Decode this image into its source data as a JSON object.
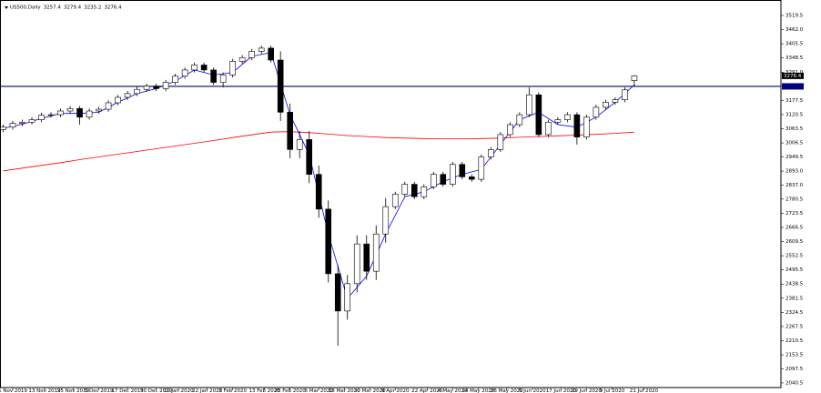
{
  "chart_data": {
    "type": "candlestick",
    "symbol": "US500,Daily",
    "x": [
      0,
      3,
      6,
      9,
      12,
      15,
      18,
      21,
      24,
      27,
      30,
      33,
      36,
      39,
      42,
      45,
      48,
      51,
      54,
      57,
      60,
      63,
      66,
      69,
      72,
      75,
      78,
      81,
      84,
      87,
      90,
      93,
      96,
      99,
      102,
      105,
      108,
      111,
      114,
      117,
      120,
      123,
      126,
      129,
      132,
      135,
      138,
      141,
      144,
      147,
      150,
      153,
      156,
      159,
      162,
      165,
      168,
      171,
      174,
      177,
      180,
      183,
      186,
      189,
      192,
      195,
      198
    ],
    "open": [
      3060,
      3070,
      3085,
      3090,
      3100,
      3118,
      3120,
      3135,
      3145,
      3110,
      3135,
      3142,
      3168,
      3190,
      3205,
      3222,
      3235,
      3225,
      3250,
      3275,
      3300,
      3320,
      3300,
      3250,
      3280,
      3335,
      3350,
      3375,
      3388,
      3340,
      3130,
      2980,
      3020,
      2880,
      2740,
      2480,
      2330,
      2440,
      2600,
      2490,
      2640,
      2750,
      2800,
      2840,
      2790,
      2830,
      2880,
      2840,
      2920,
      2870,
      2860,
      2950,
      2980,
      3040,
      3080,
      3120,
      3200,
      3040,
      3090,
      3100,
      3120,
      3030,
      3110,
      3150,
      3170,
      3180,
      3257.4
    ],
    "high": [
      3080,
      3095,
      3100,
      3110,
      3128,
      3130,
      3145,
      3155,
      3155,
      3145,
      3152,
      3178,
      3200,
      3215,
      3232,
      3245,
      3245,
      3260,
      3285,
      3310,
      3330,
      3330,
      3310,
      3290,
      3345,
      3360,
      3385,
      3398,
      3398,
      3375,
      3165,
      3055,
      3055,
      2915,
      2775,
      2515,
      2475,
      2635,
      2635,
      2675,
      2785,
      2810,
      2850,
      2850,
      2840,
      2890,
      2890,
      2930,
      2930,
      2880,
      2960,
      2990,
      3050,
      3090,
      3130,
      3230,
      3210,
      3100,
      3110,
      3130,
      3130,
      3120,
      3160,
      3180,
      3190,
      3230,
      3279.4
    ],
    "low": [
      3050,
      3060,
      3075,
      3080,
      3090,
      3108,
      3110,
      3125,
      3080,
      3100,
      3125,
      3132,
      3158,
      3180,
      3195,
      3212,
      3215,
      3215,
      3240,
      3265,
      3290,
      3290,
      3240,
      3230,
      3270,
      3325,
      3340,
      3365,
      3330,
      3095,
      2945,
      2945,
      2845,
      2705,
      2445,
      2190,
      2295,
      2405,
      2455,
      2455,
      2605,
      2740,
      2790,
      2780,
      2780,
      2820,
      2830,
      2830,
      2860,
      2850,
      2850,
      2940,
      2970,
      3030,
      3070,
      3110,
      3030,
      3030,
      3080,
      3090,
      3000,
      3020,
      3100,
      3140,
      3160,
      3170,
      3235.2
    ],
    "close": [
      3070,
      3085,
      3090,
      3100,
      3118,
      3120,
      3135,
      3145,
      3110,
      3135,
      3142,
      3168,
      3190,
      3205,
      3222,
      3235,
      3225,
      3250,
      3275,
      3300,
      3320,
      3300,
      3250,
      3280,
      3335,
      3350,
      3375,
      3388,
      3340,
      3130,
      2980,
      3020,
      2880,
      2740,
      2480,
      2330,
      2440,
      2600,
      2490,
      2640,
      2750,
      2800,
      2840,
      2790,
      2830,
      2880,
      2840,
      2920,
      2870,
      2860,
      2950,
      2980,
      3040,
      3080,
      3120,
      3200,
      3040,
      3090,
      3100,
      3120,
      3030,
      3110,
      3150,
      3170,
      3180,
      3220,
      3276.4
    ],
    "color_up": "#ffffff",
    "color_down": "#000000",
    "moving_averages": [
      {
        "color": "#ff0000",
        "x": [
          0,
          6,
          12,
          18,
          24,
          30,
          36,
          42,
          48,
          54,
          60,
          66,
          72,
          78,
          84,
          90,
          96,
          102,
          108,
          114,
          120,
          126,
          132,
          138,
          144,
          150,
          156,
          162,
          168,
          174,
          180,
          186,
          192,
          198
        ],
        "values": [
          2894,
          2905,
          2916,
          2927,
          2939,
          2950,
          2961,
          2972,
          2983,
          2994,
          3005,
          3016,
          3028,
          3039,
          3050,
          3052,
          3048,
          3042,
          3036,
          3032,
          3028,
          3026,
          3024,
          3023,
          3023,
          3024,
          3026,
          3029,
          3032,
          3035,
          3038,
          3041,
          3045,
          3050
        ]
      },
      {
        "color": "#0000ff",
        "x": [
          0,
          6,
          12,
          18,
          24,
          30,
          36,
          42,
          48,
          54,
          60,
          66,
          72,
          78,
          84,
          90,
          96,
          102,
          108,
          114,
          120,
          126,
          132,
          138,
          144,
          150,
          156,
          162,
          168,
          174,
          180,
          186,
          192,
          198
        ],
        "values": [
          3065,
          3082,
          3105,
          3125,
          3125,
          3130,
          3170,
          3205,
          3225,
          3255,
          3300,
          3280,
          3290,
          3355,
          3370,
          3120,
          2960,
          2640,
          2380,
          2470,
          2640,
          2790,
          2810,
          2850,
          2880,
          2900,
          3000,
          3100,
          3130,
          3080,
          3070,
          3110,
          3170,
          3240
        ]
      }
    ],
    "hline": {
      "value": 3234,
      "color": "#000080"
    },
    "xlim": [
      -1,
      244
    ],
    "ylim": [
      2022,
      3567
    ],
    "xticks": [
      {
        "value": 3,
        "label": "1 Nov 2019"
      },
      {
        "value": 13,
        "label": "13 Nov 2019"
      },
      {
        "value": 22,
        "label": "25 Nov 2019"
      },
      {
        "value": 30,
        "label": "5 Dec 2019"
      },
      {
        "value": 39,
        "label": "17 Dec 2019"
      },
      {
        "value": 48,
        "label": "30 Dec 2019"
      },
      {
        "value": 55,
        "label": "10 Jan 2020"
      },
      {
        "value": 64,
        "label": "22 Jan 2020"
      },
      {
        "value": 72,
        "label": "3 Feb 2020"
      },
      {
        "value": 82,
        "label": "13 Feb 2020"
      },
      {
        "value": 90,
        "label": "25 Feb 2020"
      },
      {
        "value": 99,
        "label": "6 Mar 2020"
      },
      {
        "value": 107,
        "label": "18 Mar 2020"
      },
      {
        "value": 115,
        "label": "30 Mar 2020"
      },
      {
        "value": 123,
        "label": "9 Apr 2020"
      },
      {
        "value": 133,
        "label": "22 Apr 2020"
      },
      {
        "value": 141,
        "label": "4 May 2020"
      },
      {
        "value": 149,
        "label": "14 May 2020"
      },
      {
        "value": 158,
        "label": "26 May 2020"
      },
      {
        "value": 166,
        "label": "5 Jun 2020"
      },
      {
        "value": 175,
        "label": "17 Jun 2020"
      },
      {
        "value": 183,
        "label": "29 Jun 2020"
      },
      {
        "value": 191,
        "label": "9 Jul 2020"
      },
      {
        "value": 201,
        "label": "21 Jul 2020"
      }
    ],
    "yticks": [
      3519.5,
      {
        "value": 3462,
        "label": "3462.0"
      },
      3405.5,
      3348.5,
      {
        "value": 3291,
        "label": "3291.0"
      },
      3177.5,
      3120.5,
      3063.5,
      3006.5,
      2949.5,
      {
        "value": 2893,
        "label": "2893.0"
      },
      {
        "value": 2837,
        "label": "2837.0"
      },
      2780.5,
      2723.5,
      2666.5,
      2609.5,
      2552.5,
      2495.5,
      2438.5,
      2381.5,
      2324.5,
      2267.5,
      2210.5,
      2153.5,
      2097.5,
      2040.5
    ]
  }
}
